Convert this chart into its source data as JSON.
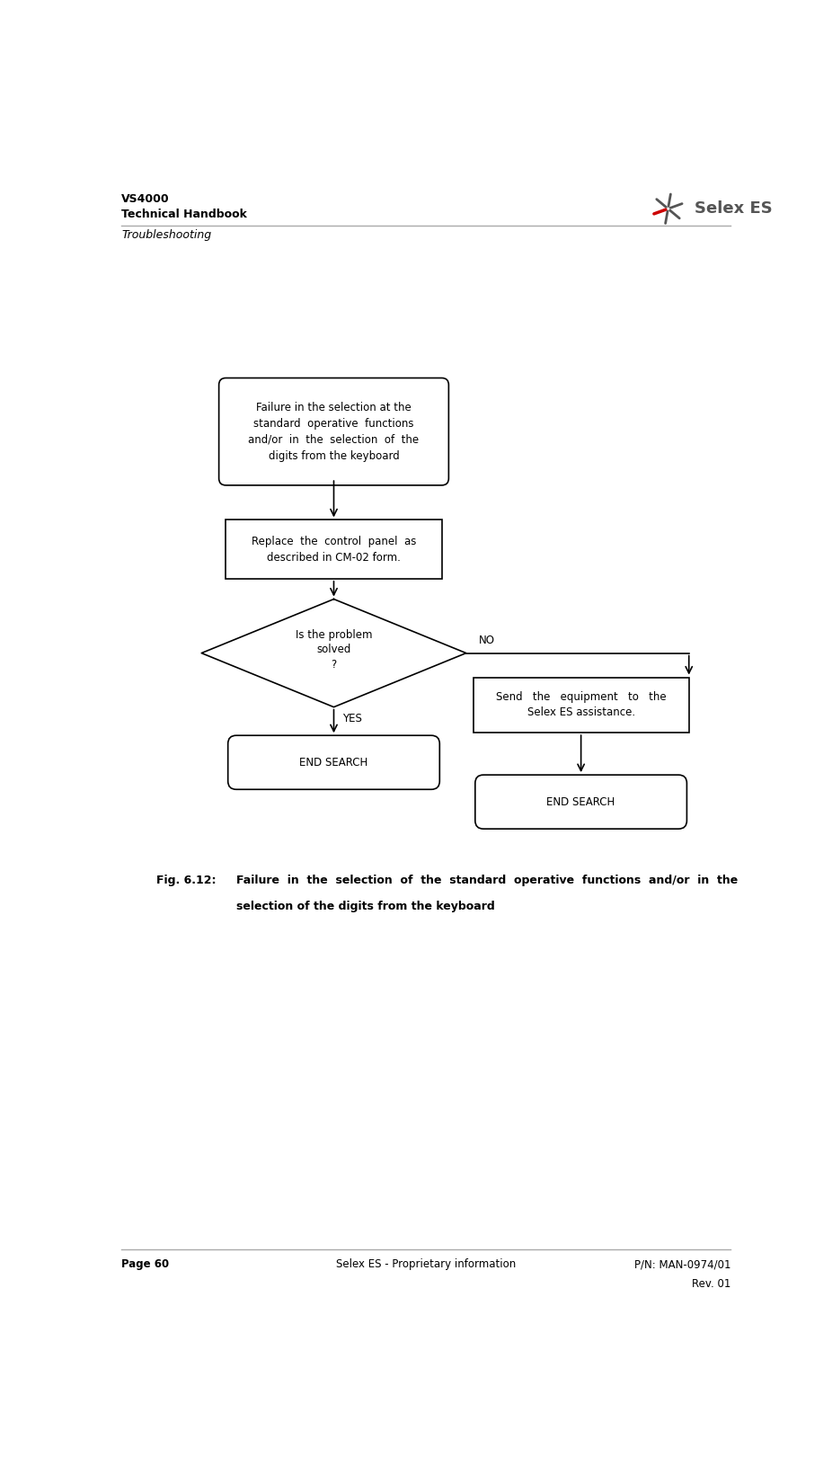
{
  "title_line1": "VS4000",
  "title_line2": "Technical Handbook",
  "subtitle": "Troubleshooting",
  "footer_left": "Page 60",
  "footer_center": "Selex ES - Proprietary information",
  "footer_right_line1": "P/N: MAN-0974/01",
  "footer_right_line2": "Rev. 01",
  "fig_label": "Fig. 6.12:",
  "fig_caption_line1": "Failure  in  the  selection  of  the  standard  operative  functions  and/or  in  the",
  "fig_caption_line2": "selection of the digits from the keyboard",
  "box1_text": "Failure in the selection at the\nstandard  operative  functions\nand/or  in  the  selection  of  the\ndigits from the keyboard",
  "box2_text": "Replace  the  control  panel  as\ndescribed in CM-02 form.",
  "diamond_text": "Is the problem\nsolved\n?",
  "box3_text": "Send   the   equipment   to   the\nSelex ES assistance.",
  "end1_text": "END SEARCH",
  "end2_text": "END SEARCH",
  "yes_label": "YES",
  "no_label": "NO",
  "bg_color": "#ffffff",
  "box_edge_color": "#000000",
  "text_color": "#000000",
  "arrow_color": "#000000",
  "line_color": "#aaaaaa"
}
